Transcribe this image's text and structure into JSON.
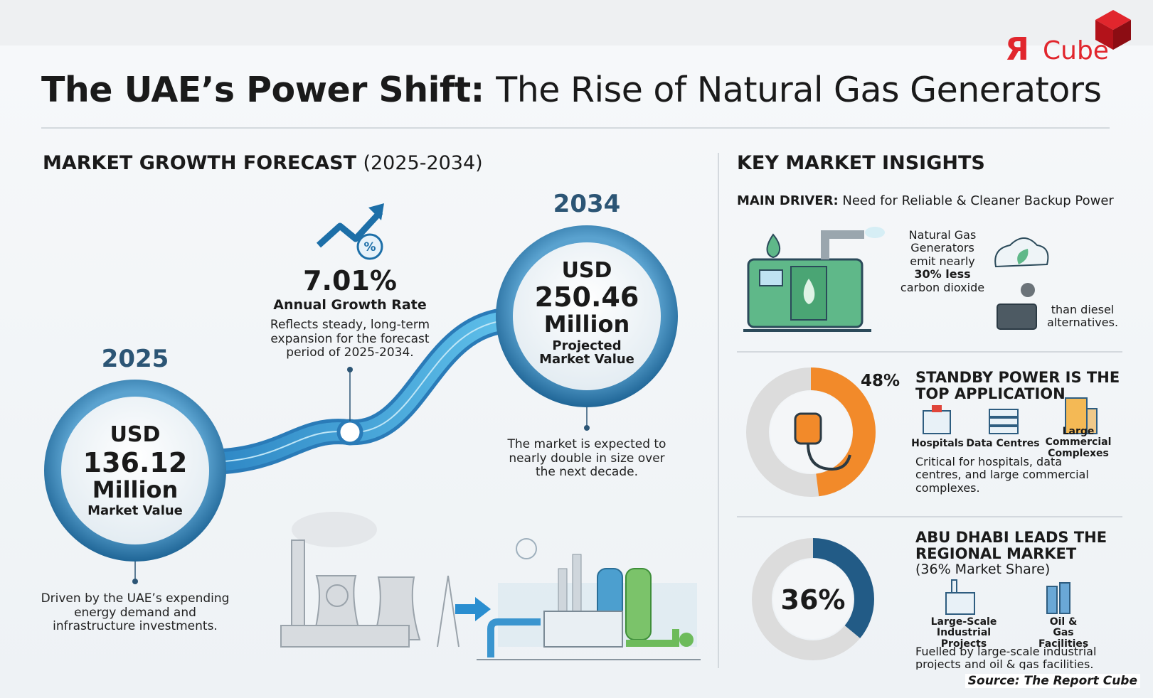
{
  "logo": {
    "mark": "Я",
    "text": "Cube"
  },
  "header": {
    "title_bold": "The UAE’s Power Shift:",
    "title_rest": "The Rise of Natural Gas Generators"
  },
  "forecast": {
    "heading": "MARKET GROWTH FORECAST",
    "period": "(2025-2034)",
    "start": {
      "year": "2025",
      "currency": "USD",
      "value": "136.12",
      "unit": "Million",
      "label": "Market Value",
      "note": "Driven by the UAE’s expending energy demand and infrastructure investments."
    },
    "growth": {
      "rate": "7.01%",
      "label": "Annual Growth Rate",
      "note": "Reflects steady, long-term expansion for the forecast period of 2025-2034."
    },
    "end": {
      "year": "2034",
      "currency": "USD",
      "value": "250.46",
      "unit": "Million",
      "label": "Projected Market Value",
      "note": "The market is expected to nearly double in size over the next decade."
    }
  },
  "insights": {
    "heading": "KEY MARKET INSIGHTS",
    "driver_label": "MAIN DRIVER:",
    "driver_text": "Need for Reliable & Cleaner Backup Power",
    "emission": {
      "text1": "Natural Gas Generators emit nearly",
      "bold": "30% less",
      "text2": "carbon dioxide",
      "text3": "than diesel alternatives."
    },
    "standby": {
      "share": 48,
      "share_label": "48%",
      "title": "STANDBY POWER IS THE TOP APPLICATION",
      "uses": [
        "Hospitals",
        "Data Centres",
        "Large Commercial Complexes"
      ],
      "note": "Critical for hospitals, data centres, and large commercial complexes."
    },
    "abudhabi": {
      "share": 36,
      "share_label": "36%",
      "title": "ABU DHABI LEADS THE REGIONAL MARKET",
      "subtitle": "(36% Market Share)",
      "uses": [
        "Large-Scale Industrial Projects",
        "Oil & Gas Facilities"
      ],
      "note": "Fuelled by large-scale industrial projects and oil & gas facilities."
    }
  },
  "source": "Source: The Report Cube"
}
